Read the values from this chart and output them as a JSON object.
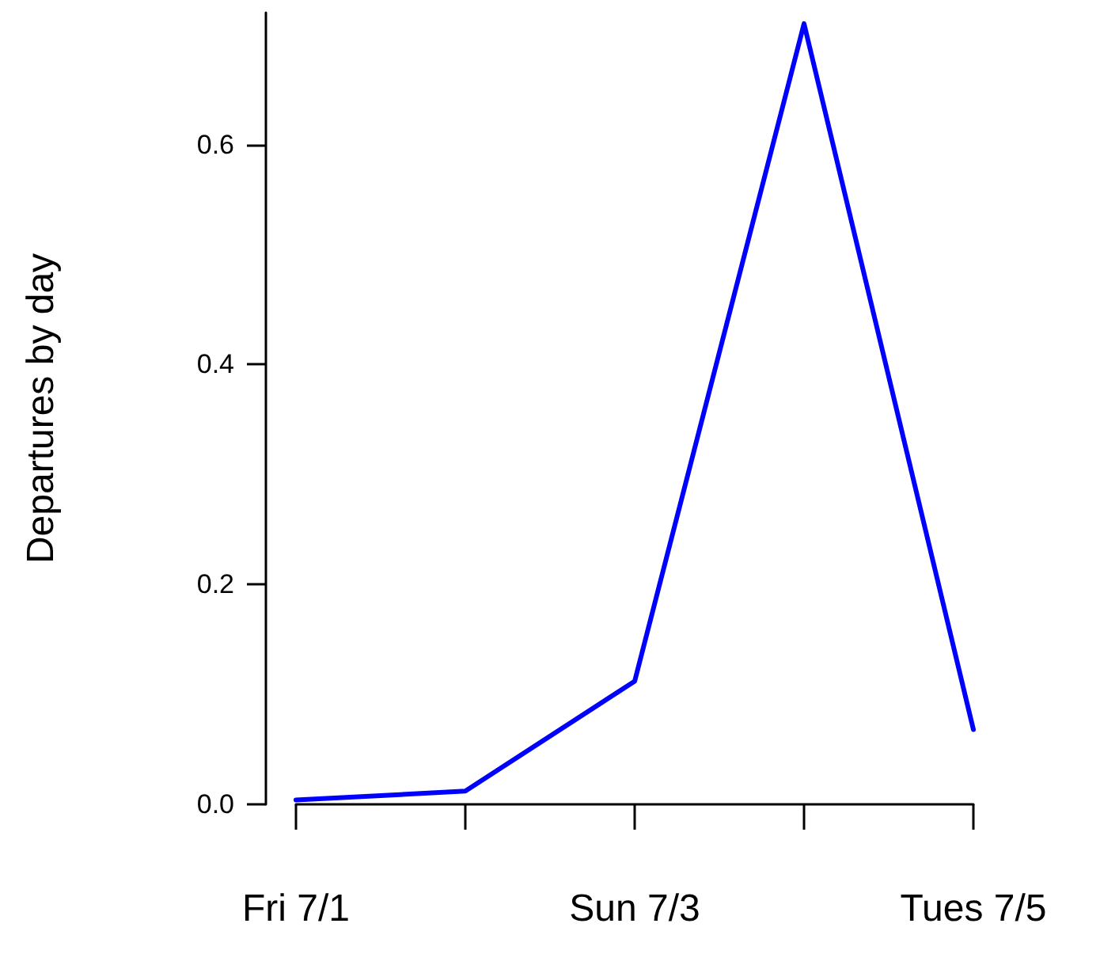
{
  "chart_data": {
    "type": "line",
    "ylabel": "Departures by day",
    "categories": [
      "Fri 7/1",
      null,
      "Sun 7/3",
      null,
      "Tues 7/5"
    ],
    "values": [
      0.004,
      0.012,
      0.112,
      0.71,
      0.068
    ],
    "color": "#0000ff",
    "ylim": [
      0,
      0.72
    ],
    "yticks": [
      {
        "value": 0,
        "label": "0.0"
      },
      {
        "value": 0.2,
        "label": "0.2"
      },
      {
        "value": 0.4,
        "label": "0.4"
      },
      {
        "value": 0.6,
        "label": "0.6"
      }
    ],
    "grid": false,
    "marker": "none",
    "line_style": "solid"
  }
}
